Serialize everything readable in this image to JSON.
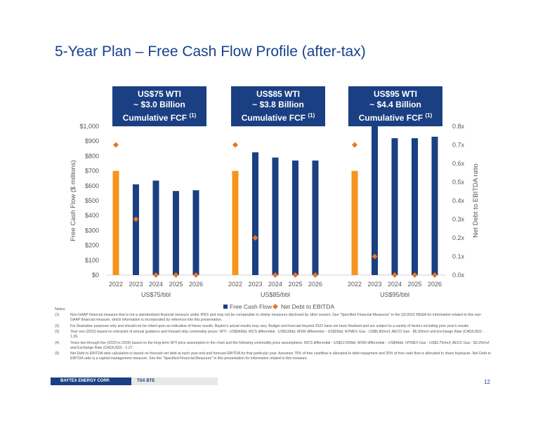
{
  "title": "5-Year Plan – Free Cash Flow Profile (after-tax)",
  "callouts": [
    {
      "line1": "US$75 WTI",
      "line2": "~ $3.0 Billion",
      "line3": "Cumulative FCF",
      "sup": "(1)"
    },
    {
      "line1": "US$85 WTI",
      "line2": "~ $3.8 Billion",
      "line3": "Cumulative FCF",
      "sup": "(1)"
    },
    {
      "line1": "US$95 WTI",
      "line2": "~ $4.4 Billion",
      "line3": "Cumulative FCF",
      "sup": "(1)"
    }
  ],
  "chart_data": {
    "type": "bar",
    "ylabel": "Free Cash Flow ($ millions)",
    "y2label": "Net Debt to EBITDA ratio",
    "ylim": [
      0,
      1000
    ],
    "y2lim": [
      0,
      0.8
    ],
    "y_ticks": [
      "$0",
      "$100",
      "$200",
      "$300",
      "$400",
      "$500",
      "$600",
      "$700",
      "$800",
      "$900",
      "$1,000"
    ],
    "y2_ticks": [
      "0.0x",
      "0.1x",
      "0.2x",
      "0.3x",
      "0.4x",
      "0.5x",
      "0.6x",
      "0.7x",
      "0.8x"
    ],
    "groups": [
      {
        "label": "US$75/bbl",
        "categories": [
          "2022",
          "2023",
          "2024",
          "2025",
          "2026"
        ],
        "fcf": [
          700,
          610,
          635,
          565,
          570
        ],
        "net_debt_to_ebitda": [
          0.7,
          0.3,
          0.0,
          0.0,
          0.0
        ]
      },
      {
        "label": "US$85/bbl",
        "categories": [
          "2022",
          "2023",
          "2024",
          "2025",
          "2026"
        ],
        "fcf": [
          700,
          825,
          790,
          770,
          770
        ],
        "net_debt_to_ebitda": [
          0.7,
          0.2,
          0.0,
          0.0,
          0.0
        ]
      },
      {
        "label": "US$95/bbl",
        "categories": [
          "2022",
          "2023",
          "2024",
          "2025",
          "2026"
        ],
        "fcf": [
          700,
          1000,
          920,
          920,
          930
        ],
        "net_debt_to_ebitda": [
          0.7,
          0.1,
          0.0,
          0.0,
          0.0
        ]
      }
    ],
    "series": [
      {
        "name": "Free Cash Flow",
        "type": "bar"
      },
      {
        "name": "Net Debt to EBITDA",
        "type": "scatter"
      }
    ],
    "colors": {
      "first_year_bar": "#f7941d",
      "bar": "#1a3f82",
      "marker": "#e87722"
    },
    "legend": "bottom"
  },
  "notes": {
    "label": "Notes:",
    "items": [
      {
        "num": "(1)",
        "text": "Non-GAAP financial measure that is not a standardized financial measure under IFRS and may not be comparable to similar measures disclosed by other issuers. See \"Specified Financial Measures\" in the Q1/2022 MD&A for information related to this non-GAAP financial measure, which information is incorporated by reference into this presentation."
      },
      {
        "num": "(2)",
        "text": "For illustrative purposes only and should not be relied upon as indicative of future results. Baytex's actual results may vary. Budget and forecast beyond 2022 have not been finalized and are subject to a variety of factors including prior year's results."
      },
      {
        "num": "(3)",
        "text": "Year one (2022) based on mid-point of annual guidance and forward strip commodity prices: WTI - US$94/bbl; WCS differential - US$13/bbl; MSW differential – US$2/bbl, NYMEX Gas - US$5.80/mcf; AECO Gas - $5.30/mcf and Exchange Rate (CAD/USD) - 1.26."
      },
      {
        "num": "(4)",
        "text": "Years two through five (2023 to 2026) based on the long-term WTI price assumption in the chart and the following commodity price assumptions: WCS differential - US$12.50/bbl; MSW differential – US$4/bbl, NYMEX Gas - US$3.75/mcf; AECO Gas - $3.25/mcf and Exchange Rate (CAD/USD) - 1.27."
      },
      {
        "num": "(5)",
        "text": "Net Debt to EBITDA ratio calculation is based on forecast net debt at each year-end and forecast EBITDA for that particular year. Assumes 75% of free cashflow is allocated to debt repayment and 25% of free cash flow is allocated to share buybacks. Net Debt to EBITDA ratio is a capital management measure. See the \"Specified Financial Measures\" in this presentation for information related to this measure."
      }
    ]
  },
  "footer": {
    "company": "BAYTEX ENERGY CORP.",
    "ticker": "TSX BTE",
    "page": "12"
  }
}
